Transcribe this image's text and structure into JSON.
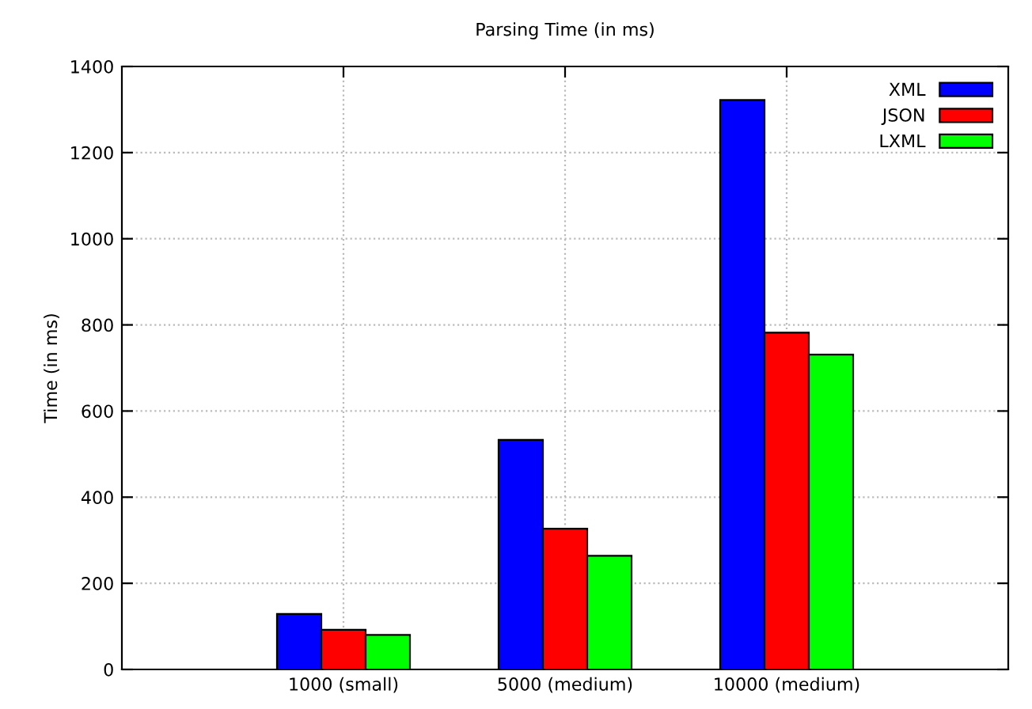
{
  "chart_data": {
    "type": "bar",
    "title": "Parsing Time (in ms)",
    "ylabel": "Time (in ms)",
    "categories": [
      "1000 (small)",
      "5000 (medium)",
      "10000 (medium)"
    ],
    "series": [
      {
        "name": "XML",
        "color": "#0000ff",
        "values": [
          129,
          533,
          1322
        ]
      },
      {
        "name": "JSON",
        "color": "#ff0000",
        "values": [
          92,
          327,
          782
        ]
      },
      {
        "name": "LXML",
        "color": "#00ff00",
        "values": [
          80,
          264,
          731
        ]
      }
    ],
    "ylim": [
      0,
      1400
    ],
    "yticks": [
      0,
      200,
      400,
      600,
      800,
      1000,
      1200,
      1400
    ],
    "grid": true,
    "legend": "top right"
  }
}
